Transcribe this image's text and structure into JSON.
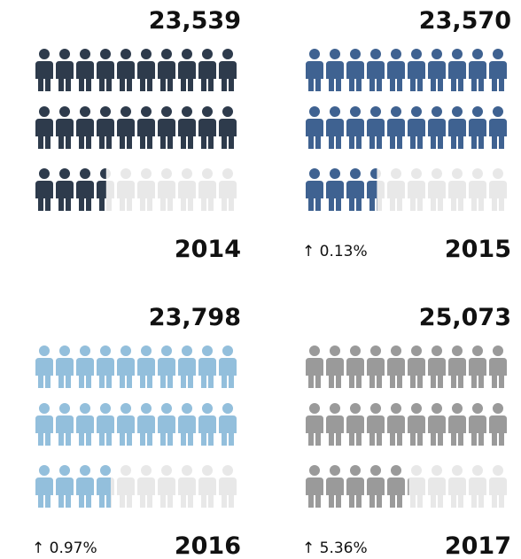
{
  "chart_data": {
    "type": "pictograph",
    "categories": [
      "2014",
      "2015",
      "2016",
      "2017"
    ],
    "values": [
      23539,
      23570,
      23798,
      25073
    ],
    "value_labels": [
      "23,539",
      "23,570",
      "23,798",
      "25,073"
    ],
    "changes": [
      null,
      0.13,
      0.97,
      5.36
    ],
    "change_labels": [
      null,
      "↑ 0.13%",
      "↑ 0.97%",
      "↑ 5.36%"
    ],
    "colors": [
      "#2e3b4c",
      "#3f6291",
      "#93bfdc",
      "#9a9a9a"
    ],
    "empty_color": "#e8e8e8"
  }
}
